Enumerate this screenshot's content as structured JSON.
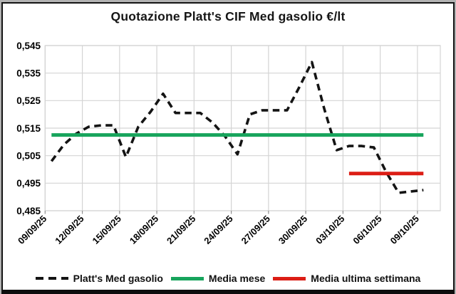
{
  "title": "Quotazione Platt's CIF Med gasolio €/lt",
  "chart_data": {
    "type": "line",
    "x": [
      "09/09/25",
      "10/09/25",
      "11/09/25",
      "12/09/25",
      "13/09/25",
      "14/09/25",
      "15/09/25",
      "16/09/25",
      "17/09/25",
      "18/09/25",
      "19/09/25",
      "20/09/25",
      "21/09/25",
      "22/09/25",
      "23/09/25",
      "24/09/25",
      "25/09/25",
      "26/09/25",
      "27/09/25",
      "28/09/25",
      "29/09/25",
      "30/09/25",
      "01/10/25",
      "02/10/25",
      "03/10/25",
      "04/10/25",
      "05/10/25",
      "06/10/25",
      "07/10/25",
      "08/10/25",
      "09/10/25"
    ],
    "x_tick_labels": [
      "09/09/25",
      "12/09/25",
      "15/09/25",
      "18/09/25",
      "21/09/25",
      "24/09/25",
      "27/09/25",
      "30/09/25",
      "03/10/25",
      "06/10/25",
      "09/10/25"
    ],
    "series": [
      {
        "name": "Platt's Med gasolio",
        "style": "dashed",
        "color": "#141414",
        "values": [
          0.503,
          0.509,
          0.513,
          0.5155,
          0.516,
          0.516,
          0.5045,
          0.5155,
          0.521,
          0.5275,
          0.5205,
          0.5205,
          0.5205,
          0.517,
          0.512,
          0.5055,
          0.52,
          0.5215,
          0.5215,
          0.5215,
          0.53,
          0.539,
          0.522,
          0.507,
          0.5085,
          0.5085,
          0.508,
          0.499,
          0.4915,
          0.492,
          0.4925
        ]
      },
      {
        "name": "Media mese",
        "style": "solid",
        "color": "#17a45c",
        "value": 0.5125,
        "span": [
          "09/09/25",
          "09/10/25"
        ]
      },
      {
        "name": "Media ultima settimana",
        "style": "solid",
        "color": "#dc1d15",
        "value": 0.4985,
        "span": [
          "03/10/25",
          "09/10/25"
        ]
      }
    ],
    "ylim": [
      0.485,
      0.545
    ],
    "y_step": 0.01,
    "y_tick_labels": [
      "0,545",
      "0,535",
      "0,525",
      "0,515",
      "0,505",
      "0,495",
      "0,485"
    ],
    "grid": true,
    "legend_position": "bottom"
  },
  "legend": {
    "items": [
      {
        "label": "Platt's Med gasolio",
        "color": "#141414",
        "style": "dashed"
      },
      {
        "label": "Media mese",
        "color": "#17a45c",
        "style": "solid"
      },
      {
        "label": "Media ultima settimana",
        "color": "#dc1d15",
        "style": "solid"
      }
    ]
  },
  "colors": {
    "gridline": "#d4d4d4",
    "tick": "#8f8f8f",
    "text": "#000000",
    "background": "#ffffff"
  }
}
